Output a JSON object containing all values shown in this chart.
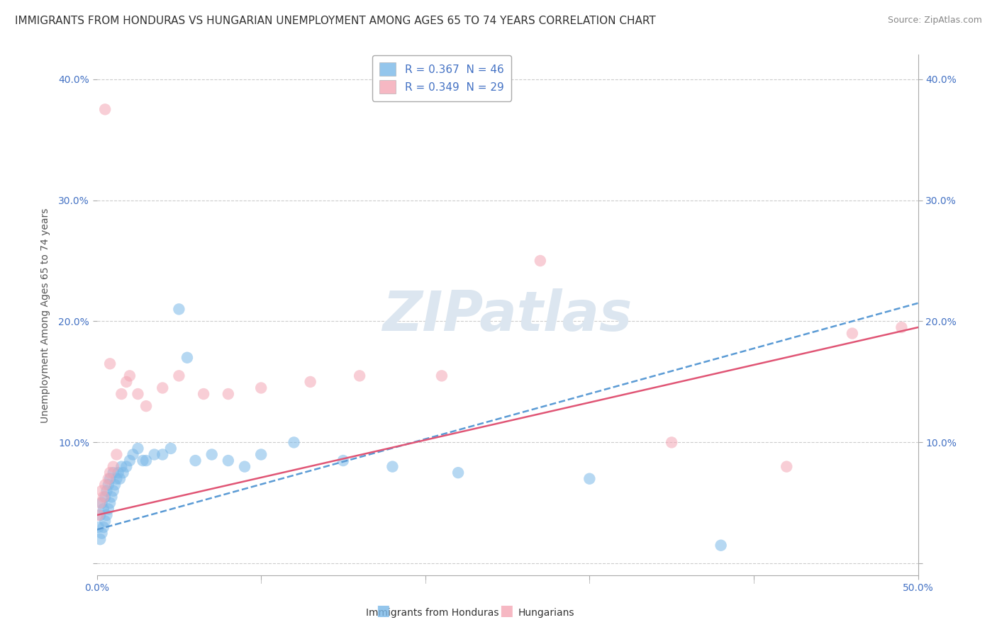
{
  "title": "IMMIGRANTS FROM HONDURAS VS HUNGARIAN UNEMPLOYMENT AMONG AGES 65 TO 74 YEARS CORRELATION CHART",
  "source": "Source: ZipAtlas.com",
  "ylabel": "Unemployment Among Ages 65 to 74 years",
  "xlim": [
    0.0,
    0.5
  ],
  "ylim": [
    -0.01,
    0.42
  ],
  "xticks": [
    0.0,
    0.1,
    0.2,
    0.3,
    0.4,
    0.5
  ],
  "yticks": [
    0.0,
    0.1,
    0.2,
    0.3,
    0.4
  ],
  "ytick_labels": [
    "",
    "10.0%",
    "20.0%",
    "30.0%",
    "40.0%"
  ],
  "xtick_labels": [
    "0.0%",
    "",
    "",
    "",
    "",
    "50.0%"
  ],
  "series1_name": "Immigrants from Honduras",
  "series1_color": "#7ab8e8",
  "series1_line_color": "#5b9bd5",
  "series1_R": 0.367,
  "series1_N": 46,
  "series2_name": "Hungarians",
  "series2_color": "#f4a7b5",
  "series2_line_color": "#e05575",
  "series2_R": 0.349,
  "series2_N": 29,
  "blue_scatter_x": [
    0.001,
    0.002,
    0.002,
    0.003,
    0.003,
    0.004,
    0.004,
    0.005,
    0.005,
    0.006,
    0.006,
    0.007,
    0.007,
    0.008,
    0.008,
    0.009,
    0.01,
    0.01,
    0.011,
    0.012,
    0.013,
    0.014,
    0.015,
    0.016,
    0.018,
    0.02,
    0.022,
    0.025,
    0.028,
    0.03,
    0.035,
    0.04,
    0.045,
    0.05,
    0.055,
    0.06,
    0.07,
    0.08,
    0.09,
    0.1,
    0.12,
    0.15,
    0.18,
    0.22,
    0.3,
    0.38
  ],
  "blue_scatter_y": [
    0.03,
    0.02,
    0.04,
    0.025,
    0.05,
    0.03,
    0.045,
    0.035,
    0.055,
    0.04,
    0.06,
    0.045,
    0.065,
    0.05,
    0.07,
    0.055,
    0.06,
    0.075,
    0.065,
    0.07,
    0.075,
    0.07,
    0.08,
    0.075,
    0.08,
    0.085,
    0.09,
    0.095,
    0.085,
    0.085,
    0.09,
    0.09,
    0.095,
    0.21,
    0.17,
    0.085,
    0.09,
    0.085,
    0.08,
    0.09,
    0.1,
    0.085,
    0.08,
    0.075,
    0.07,
    0.015
  ],
  "pink_scatter_x": [
    0.001,
    0.002,
    0.003,
    0.004,
    0.005,
    0.007,
    0.008,
    0.01,
    0.012,
    0.015,
    0.018,
    0.02,
    0.025,
    0.03,
    0.04,
    0.05,
    0.065,
    0.08,
    0.1,
    0.13,
    0.16,
    0.21,
    0.27,
    0.35,
    0.42,
    0.46,
    0.49,
    0.005,
    0.008
  ],
  "pink_scatter_y": [
    0.04,
    0.05,
    0.06,
    0.055,
    0.065,
    0.07,
    0.075,
    0.08,
    0.09,
    0.14,
    0.15,
    0.155,
    0.14,
    0.13,
    0.145,
    0.155,
    0.14,
    0.14,
    0.145,
    0.15,
    0.155,
    0.155,
    0.25,
    0.1,
    0.08,
    0.19,
    0.195,
    0.375,
    0.165
  ],
  "background_color": "#ffffff",
  "grid_color": "#cccccc",
  "watermark_text": "ZIPatlas",
  "watermark_color": "#dce6f0",
  "title_fontsize": 11,
  "axis_label_fontsize": 10,
  "tick_fontsize": 10,
  "legend_fontsize": 11,
  "source_fontsize": 9
}
